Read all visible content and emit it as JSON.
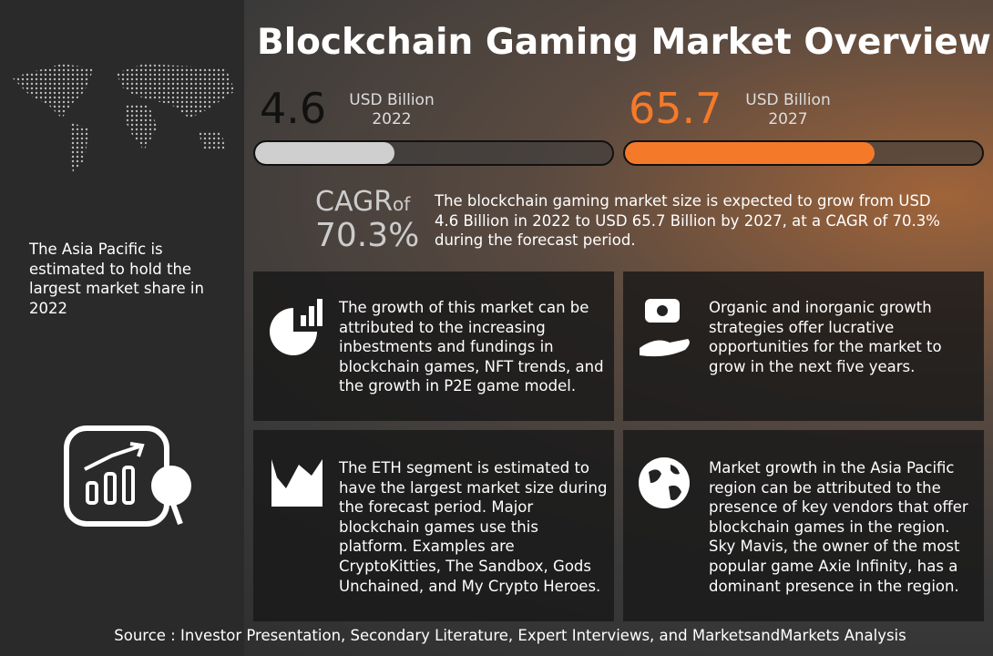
{
  "header": {
    "title": "Blockchain Gaming Market Overview"
  },
  "stats": [
    {
      "value": "4.6",
      "unit": "USD Billion",
      "year": "2022"
    },
    {
      "value": "65.7",
      "unit": "USD Billion",
      "year": "2027"
    }
  ],
  "cagr": {
    "label": "CAGR",
    "of": "of",
    "value": "70.3%",
    "text": "The blockchain gaming market size is expected to grow from USD 4.6 Billion in 2022 to USD 65.7 Billion by 2027, at a CAGR of 70.3% during the forecast period."
  },
  "sidebar": {
    "text": "The Asia Pacific is estimated to hold the largest market share in 2022"
  },
  "cards": [
    {
      "text": "The growth of this market can be attributed to the increasing inbestments and fundings in blockchain games, NFT trends, and the growth in P2E game model."
    },
    {
      "text": "Organic and inorganic growth strategies offer lucrative opportunities for the market to grow in the next five years."
    },
    {
      "text": "The ETH segment is estimated to have the largest market size during the forecast period. Major blockchain games use this platform. Examples are CryptoKitties, The Sandbox, Gods Unchained, and My Crypto Heroes."
    },
    {
      "text": "Market growth in the Asia Pacific region can be attributed to the presence of key vendors that offer blockchain games in the region. Sky Mavis, the owner of the most popular game Axie Infinity, has a dominant presence in the region."
    }
  ],
  "footer": {
    "source": "Source : Investor Presentation, Secondary Literature, Expert Interviews, and MarketsandMarkets Analysis"
  }
}
